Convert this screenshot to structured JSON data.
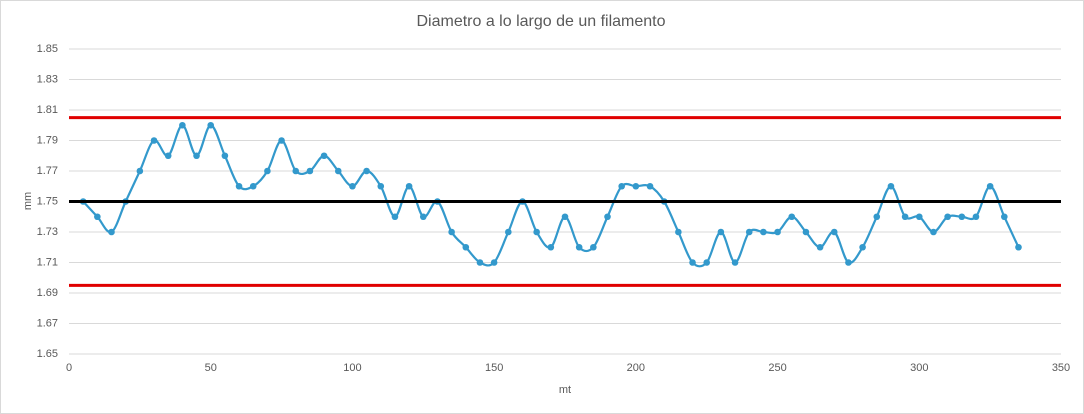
{
  "chart_data": {
    "type": "line",
    "title": "Diametro a lo largo de un filamento",
    "x_label": "mt",
    "y_label": "mm",
    "xlim": [
      0,
      350
    ],
    "xticks": [
      0,
      50,
      100,
      150,
      200,
      250,
      300,
      350
    ],
    "ylim": [
      1.65,
      1.85
    ],
    "yticks": [
      1.65,
      1.67,
      1.69,
      1.71,
      1.73,
      1.75,
      1.77,
      1.79,
      1.81,
      1.83,
      1.85
    ],
    "grid": true,
    "smooth": true,
    "series": [
      {
        "color": "#3399cc",
        "markers": true,
        "x": [
          5,
          10,
          15,
          20,
          25,
          30,
          35,
          40,
          45,
          50,
          55,
          60,
          65,
          70,
          75,
          80,
          85,
          90,
          95,
          100,
          105,
          110,
          115,
          120,
          125,
          130,
          135,
          140,
          145,
          150,
          155,
          160,
          165,
          170,
          175,
          180,
          185,
          190,
          195,
          200,
          205,
          210,
          215,
          220,
          225,
          230,
          235,
          240,
          245,
          250,
          255,
          260,
          265,
          270,
          275,
          280,
          285,
          290,
          295,
          300,
          305,
          310,
          315,
          320,
          325,
          330,
          335
        ],
        "values": [
          1.75,
          1.74,
          1.73,
          1.75,
          1.77,
          1.79,
          1.78,
          1.8,
          1.78,
          1.8,
          1.78,
          1.76,
          1.76,
          1.77,
          1.79,
          1.77,
          1.77,
          1.78,
          1.77,
          1.76,
          1.77,
          1.76,
          1.74,
          1.76,
          1.74,
          1.75,
          1.73,
          1.72,
          1.71,
          1.71,
          1.73,
          1.75,
          1.73,
          1.72,
          1.74,
          1.72,
          1.72,
          1.74,
          1.76,
          1.76,
          1.76,
          1.75,
          1.73,
          1.71,
          1.71,
          1.73,
          1.71,
          1.73,
          1.73,
          1.73,
          1.74,
          1.73,
          1.72,
          1.73,
          1.71,
          1.72,
          1.74,
          1.76,
          1.74,
          1.74,
          1.73,
          1.74,
          1.74,
          1.74,
          1.76,
          1.74,
          1.72
        ]
      },
      {
        "color": "#e00000",
        "markers": false,
        "x": [
          0,
          350
        ],
        "values": [
          1.805,
          1.805
        ]
      },
      {
        "color": "#000000",
        "markers": false,
        "x": [
          0,
          350
        ],
        "values": [
          1.75,
          1.75
        ]
      },
      {
        "color": "#e00000",
        "markers": false,
        "x": [
          0,
          350
        ],
        "values": [
          1.695,
          1.695
        ]
      }
    ]
  }
}
